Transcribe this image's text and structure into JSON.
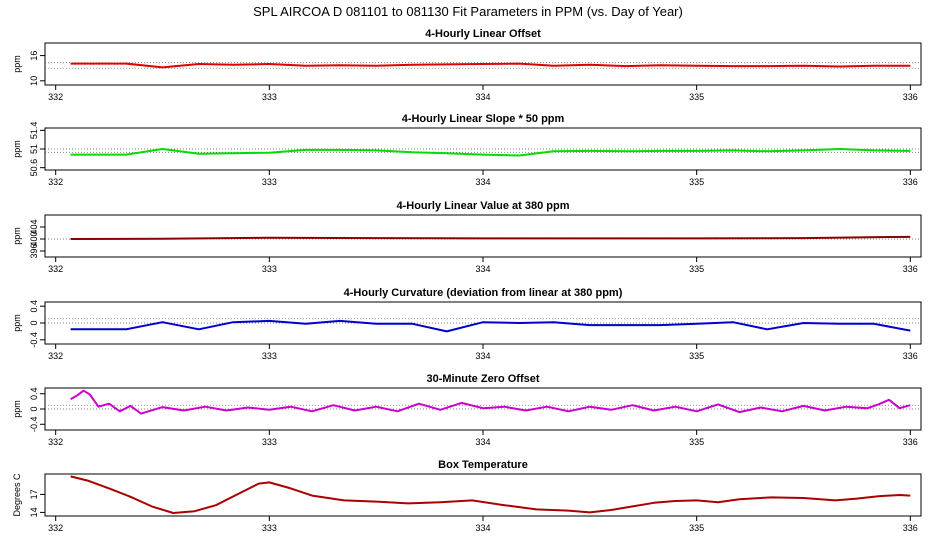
{
  "figure_title": "SPL   AIRCOA D   081101 to 081130   Fit Parameters in PPM (vs. Day of Year)",
  "chart_data": [
    {
      "type": "line",
      "title": "4-Hourly Linear Offset",
      "ylabel": "ppm",
      "color": "#e00000",
      "xlim": [
        331.95,
        336.05
      ],
      "ylim": [
        9,
        19
      ],
      "yticks": [
        10,
        16
      ],
      "xticks": [
        332,
        333,
        334,
        335,
        336
      ],
      "ref_lines": [
        13,
        14.3
      ],
      "x": [
        332.07,
        332.33,
        332.5,
        332.67,
        332.83,
        333.0,
        333.17,
        333.33,
        333.5,
        333.67,
        333.83,
        334.0,
        334.17,
        334.33,
        334.5,
        334.67,
        334.83,
        335.0,
        335.17,
        335.33,
        335.5,
        335.67,
        335.83,
        336.0
      ],
      "y": [
        14.1,
        14.1,
        13.2,
        14.0,
        13.8,
        14.0,
        13.6,
        13.7,
        13.6,
        13.8,
        13.9,
        14.0,
        14.1,
        13.6,
        13.8,
        13.5,
        13.7,
        13.6,
        13.5,
        13.5,
        13.6,
        13.4,
        13.6,
        13.6
      ]
    },
    {
      "type": "line",
      "title": "4-Hourly Linear Slope * 50 ppm",
      "ylabel": "ppm",
      "color": "#00dd00",
      "xlim": [
        331.95,
        336.05
      ],
      "ylim": [
        50.55,
        51.45
      ],
      "yticks": [
        50.6,
        51.0,
        51.4
      ],
      "xticks": [
        332,
        333,
        334,
        335,
        336
      ],
      "ref_lines": [
        50.93,
        51.0
      ],
      "x": [
        332.07,
        332.33,
        332.5,
        332.67,
        332.83,
        333.0,
        333.17,
        333.33,
        333.5,
        333.67,
        333.83,
        334.0,
        334.17,
        334.33,
        334.5,
        334.67,
        334.83,
        335.0,
        335.17,
        335.33,
        335.5,
        335.67,
        335.83,
        336.0
      ],
      "y": [
        50.88,
        50.88,
        51.0,
        50.9,
        50.91,
        50.92,
        50.98,
        50.98,
        50.97,
        50.93,
        50.91,
        50.88,
        50.86,
        50.95,
        50.96,
        50.95,
        50.96,
        50.96,
        50.97,
        50.95,
        50.97,
        51.0,
        50.97,
        50.96
      ]
    },
    {
      "type": "line",
      "title": "4-Hourly Linear Value at 380 ppm",
      "ylabel": "ppm",
      "color": "#8b0000",
      "xlim": [
        331.95,
        336.05
      ],
      "ylim": [
        394,
        408
      ],
      "yticks": [
        396,
        400,
        404
      ],
      "xticks": [
        332,
        333,
        334,
        335,
        336
      ],
      "ref_lines": [
        400
      ],
      "x": [
        332.07,
        332.5,
        333.0,
        333.5,
        334.0,
        334.5,
        335.0,
        335.5,
        335.8,
        336.0
      ],
      "y": [
        400.0,
        400.1,
        400.4,
        400.3,
        400.2,
        400.2,
        400.2,
        400.3,
        400.6,
        400.7
      ]
    },
    {
      "type": "line",
      "title": "4-Hourly Curvature (deviation from linear at 380 ppm)",
      "ylabel": "ppm",
      "color": "#0000cc",
      "xlim": [
        331.95,
        336.05
      ],
      "ylim": [
        -0.5,
        0.5
      ],
      "yticks": [
        -0.4,
        0.0,
        0.4
      ],
      "xticks": [
        332,
        333,
        334,
        335,
        336
      ],
      "ref_lines": [
        0.0,
        0.1
      ],
      "x": [
        332.07,
        332.33,
        332.5,
        332.67,
        332.83,
        333.0,
        333.17,
        333.33,
        333.5,
        333.67,
        333.83,
        334.0,
        334.17,
        334.33,
        334.5,
        334.67,
        334.83,
        335.0,
        335.17,
        335.33,
        335.5,
        335.67,
        335.83,
        336.0
      ],
      "y": [
        -0.15,
        -0.15,
        0.02,
        -0.15,
        0.02,
        0.05,
        -0.02,
        0.05,
        -0.02,
        -0.02,
        -0.2,
        0.02,
        0.0,
        0.02,
        -0.05,
        -0.05,
        -0.05,
        -0.02,
        0.02,
        -0.15,
        0.0,
        -0.02,
        -0.02,
        -0.18
      ]
    },
    {
      "type": "line",
      "title": "30-Minute Zero Offset",
      "ylabel": "ppm",
      "color": "#cc00cc",
      "xlim": [
        331.95,
        336.05
      ],
      "ylim": [
        -0.55,
        0.55
      ],
      "yticks": [
        -0.4,
        0.0,
        0.4
      ],
      "xticks": [
        332,
        333,
        334,
        335,
        336
      ],
      "ref_lines": [
        0.0,
        0.1
      ],
      "x": [
        332.07,
        332.1,
        332.13,
        332.16,
        332.2,
        332.25,
        332.3,
        332.35,
        332.4,
        332.5,
        332.6,
        332.7,
        332.8,
        332.9,
        333.0,
        333.1,
        333.2,
        333.3,
        333.4,
        333.5,
        333.6,
        333.7,
        333.8,
        333.9,
        334.0,
        334.1,
        334.2,
        334.3,
        334.4,
        334.5,
        334.6,
        334.7,
        334.8,
        334.9,
        335.0,
        335.1,
        335.2,
        335.3,
        335.4,
        335.5,
        335.6,
        335.7,
        335.8,
        335.85,
        335.9,
        335.95,
        336.0
      ],
      "y": [
        0.26,
        0.35,
        0.48,
        0.38,
        0.06,
        0.14,
        -0.06,
        0.08,
        -0.12,
        0.05,
        -0.04,
        0.06,
        -0.04,
        0.04,
        -0.02,
        0.06,
        -0.06,
        0.1,
        -0.04,
        0.06,
        -0.06,
        0.14,
        -0.02,
        0.16,
        0.02,
        0.06,
        -0.04,
        0.06,
        -0.06,
        0.06,
        -0.02,
        0.1,
        -0.04,
        0.06,
        -0.06,
        0.12,
        -0.08,
        0.04,
        -0.06,
        0.08,
        -0.04,
        0.06,
        0.02,
        0.12,
        0.24,
        0.02,
        0.1
      ]
    },
    {
      "type": "line",
      "title": "Box Temperature",
      "ylabel": "Degrees C",
      "color": "#aa0000",
      "xlim": [
        331.95,
        336.05
      ],
      "ylim": [
        13.4,
        20.4
      ],
      "yticks": [
        14,
        17
      ],
      "xticks": [
        332,
        333,
        334,
        335,
        336
      ],
      "ref_lines": [],
      "x": [
        332.07,
        332.15,
        332.25,
        332.35,
        332.45,
        332.55,
        332.65,
        332.75,
        332.85,
        332.95,
        333.0,
        333.1,
        333.2,
        333.35,
        333.5,
        333.65,
        333.8,
        333.95,
        334.1,
        334.25,
        334.4,
        334.5,
        334.6,
        334.7,
        334.8,
        334.9,
        335.0,
        335.1,
        335.2,
        335.35,
        335.5,
        335.65,
        335.75,
        335.85,
        335.95,
        336.0
      ],
      "y": [
        20.0,
        19.3,
        18.0,
        16.6,
        15.0,
        13.9,
        14.2,
        15.2,
        17.0,
        18.8,
        19.0,
        18.0,
        16.8,
        16.0,
        15.8,
        15.5,
        15.7,
        16.0,
        15.2,
        14.5,
        14.3,
        14.0,
        14.4,
        15.0,
        15.6,
        15.9,
        16.0,
        15.7,
        16.2,
        16.5,
        16.4,
        16.0,
        16.3,
        16.7,
        16.9,
        16.8
      ]
    }
  ]
}
